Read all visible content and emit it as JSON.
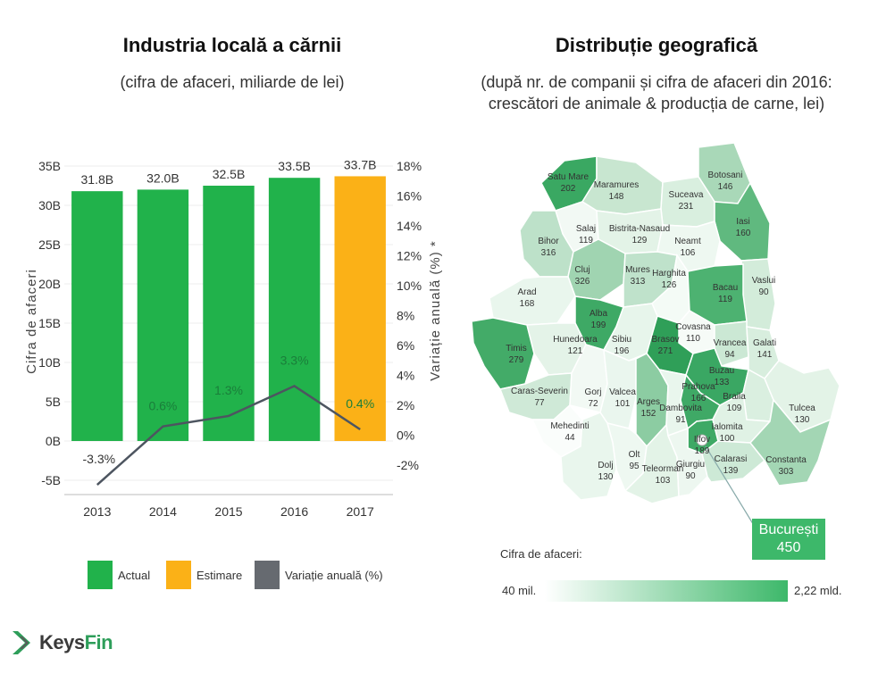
{
  "left": {
    "title": "Industria locală a cărnii",
    "subtitle": "(cifra de afaceri, miliarde de lei)"
  },
  "right": {
    "title": "Distribuție geografică",
    "subtitle_line1": "(după nr. de companii și cifra de afaceri din 2016:",
    "subtitle_line2": "crescători de animale & producția de carne, lei)"
  },
  "chart_data": {
    "type": "bar",
    "categories": [
      "2013",
      "2014",
      "2015",
      "2016",
      "2017"
    ],
    "series": [
      {
        "name": "Actual",
        "values": [
          31.8,
          32.0,
          32.5,
          33.5,
          null
        ],
        "color": "#21b24b"
      },
      {
        "name": "Estimare",
        "values": [
          null,
          null,
          null,
          null,
          33.7
        ],
        "color": "#fbb117"
      },
      {
        "name": "Variație anuală (%)",
        "type": "line",
        "axis": "right",
        "values": [
          -3.3,
          0.6,
          1.3,
          3.3,
          0.4
        ],
        "color": "#4d5560"
      }
    ],
    "bar_labels": [
      "31.8B",
      "32.0B",
      "32.5B",
      "33.5B",
      "33.7B"
    ],
    "line_labels": [
      "-3.3%",
      "0.6%",
      "1.3%",
      "3.3%",
      "0.4%"
    ],
    "ylabel": "Cifra de afaceri",
    "y2label": "Variație anuală (%) *",
    "ylim": [
      -5,
      35
    ],
    "y2lim": [
      -3,
      18
    ],
    "yticks": [
      "-5B",
      "0B",
      "5B",
      "10B",
      "15B",
      "20B",
      "25B",
      "30B",
      "35B"
    ],
    "y2ticks": [
      "-2%",
      "0%",
      "2%",
      "4%",
      "6%",
      "8%",
      "10%",
      "12%",
      "14%",
      "16%",
      "18%"
    ],
    "legend": "bottom"
  },
  "legend": [
    {
      "label": "Actual",
      "color": "#21b24b"
    },
    {
      "label": "Estimare",
      "color": "#fbb117"
    },
    {
      "label": "Variație anuală (%)",
      "color": "#666a70"
    }
  ],
  "map": {
    "counties": [
      {
        "name": "Satu Mare",
        "value": "202",
        "color": "#3aa862"
      },
      {
        "name": "Maramures",
        "value": "148",
        "color": "#c8e6d0"
      },
      {
        "name": "Botosani",
        "value": "146",
        "color": "#a9d8b8"
      },
      {
        "name": "Suceava",
        "value": "231",
        "color": "#d9efdf"
      },
      {
        "name": "Salaj",
        "value": "119",
        "color": "#f2f9f4"
      },
      {
        "name": "Bistrita-Nasaud",
        "value": "129",
        "color": "#e3f3e7"
      },
      {
        "name": "Iasi",
        "value": "160",
        "color": "#60b97f"
      },
      {
        "name": "Bihor",
        "value": "316",
        "color": "#bde1c9"
      },
      {
        "name": "Neamt",
        "value": "106",
        "color": "#eef8f1"
      },
      {
        "name": "Cluj",
        "value": "326",
        "color": "#a0d4b1"
      },
      {
        "name": "Mures",
        "value": "313",
        "color": "#bfe2cb"
      },
      {
        "name": "Harghita",
        "value": "126",
        "color": "#f4fbf6"
      },
      {
        "name": "Vaslui",
        "value": "90",
        "color": "#d3ecda"
      },
      {
        "name": "Bacau",
        "value": "119",
        "color": "#4db271"
      },
      {
        "name": "Arad",
        "value": "168",
        "color": "#e9f6ed"
      },
      {
        "name": "Alba",
        "value": "199",
        "color": "#3ea965"
      },
      {
        "name": "Covasna",
        "value": "110",
        "color": "#f6fbf7"
      },
      {
        "name": "Timis",
        "value": "279",
        "color": "#43ab68"
      },
      {
        "name": "Hunedoara",
        "value": "121",
        "color": "#e4f3e8"
      },
      {
        "name": "Sibiu",
        "value": "196",
        "color": "#e7f5eb"
      },
      {
        "name": "Brasov",
        "value": "271",
        "color": "#2f9f58"
      },
      {
        "name": "Vrancea",
        "value": "94",
        "color": "#cbe8d4"
      },
      {
        "name": "Galati",
        "value": "141",
        "color": "#d8eede"
      },
      {
        "name": "Buzau",
        "value": "133",
        "color": "#3aa763"
      },
      {
        "name": "Caras-Severin",
        "value": "77",
        "color": "#cfe9d7"
      },
      {
        "name": "Gorj",
        "value": "72",
        "color": "#f2f9f4"
      },
      {
        "name": "Valcea",
        "value": "101",
        "color": "#eaf6ee"
      },
      {
        "name": "Arges",
        "value": "152",
        "color": "#8ccca2"
      },
      {
        "name": "Dambovita",
        "value": "91",
        "color": "#e9f6ed"
      },
      {
        "name": "Prahova",
        "value": "166",
        "color": "#3fa966"
      },
      {
        "name": "Braila",
        "value": "109",
        "color": "#daefe0"
      },
      {
        "name": "Tulcea",
        "value": "130",
        "color": "#e3f3e7"
      },
      {
        "name": "Mehedinti",
        "value": "44",
        "color": "#fafdfb"
      },
      {
        "name": "Ilfov",
        "value": "189",
        "color": "#3ea965"
      },
      {
        "name": "Ialomita",
        "value": "100",
        "color": "#e0f2e5"
      },
      {
        "name": "Olt",
        "value": "95",
        "color": "#eef8f1"
      },
      {
        "name": "Dolj",
        "value": "130",
        "color": "#e9f6ed"
      },
      {
        "name": "Teleorman",
        "value": "103",
        "color": "#e3f3e7"
      },
      {
        "name": "Giurgiu",
        "value": "90",
        "color": "#edf7f0"
      },
      {
        "name": "Calarasi",
        "value": "139",
        "color": "#cde9d6"
      },
      {
        "name": "Constanta",
        "value": "303",
        "color": "#a3d6b4"
      }
    ],
    "callout": {
      "name": "București",
      "value": "450",
      "color": "#3db86a"
    },
    "scale": {
      "label": "Cifra de afaceri:",
      "min": "40 mil.",
      "max": "2,22 mld.",
      "color_min": "#ffffff",
      "color_max": "#3db86a"
    }
  },
  "logo": {
    "keys": "Keys",
    "fin": "Fin"
  }
}
